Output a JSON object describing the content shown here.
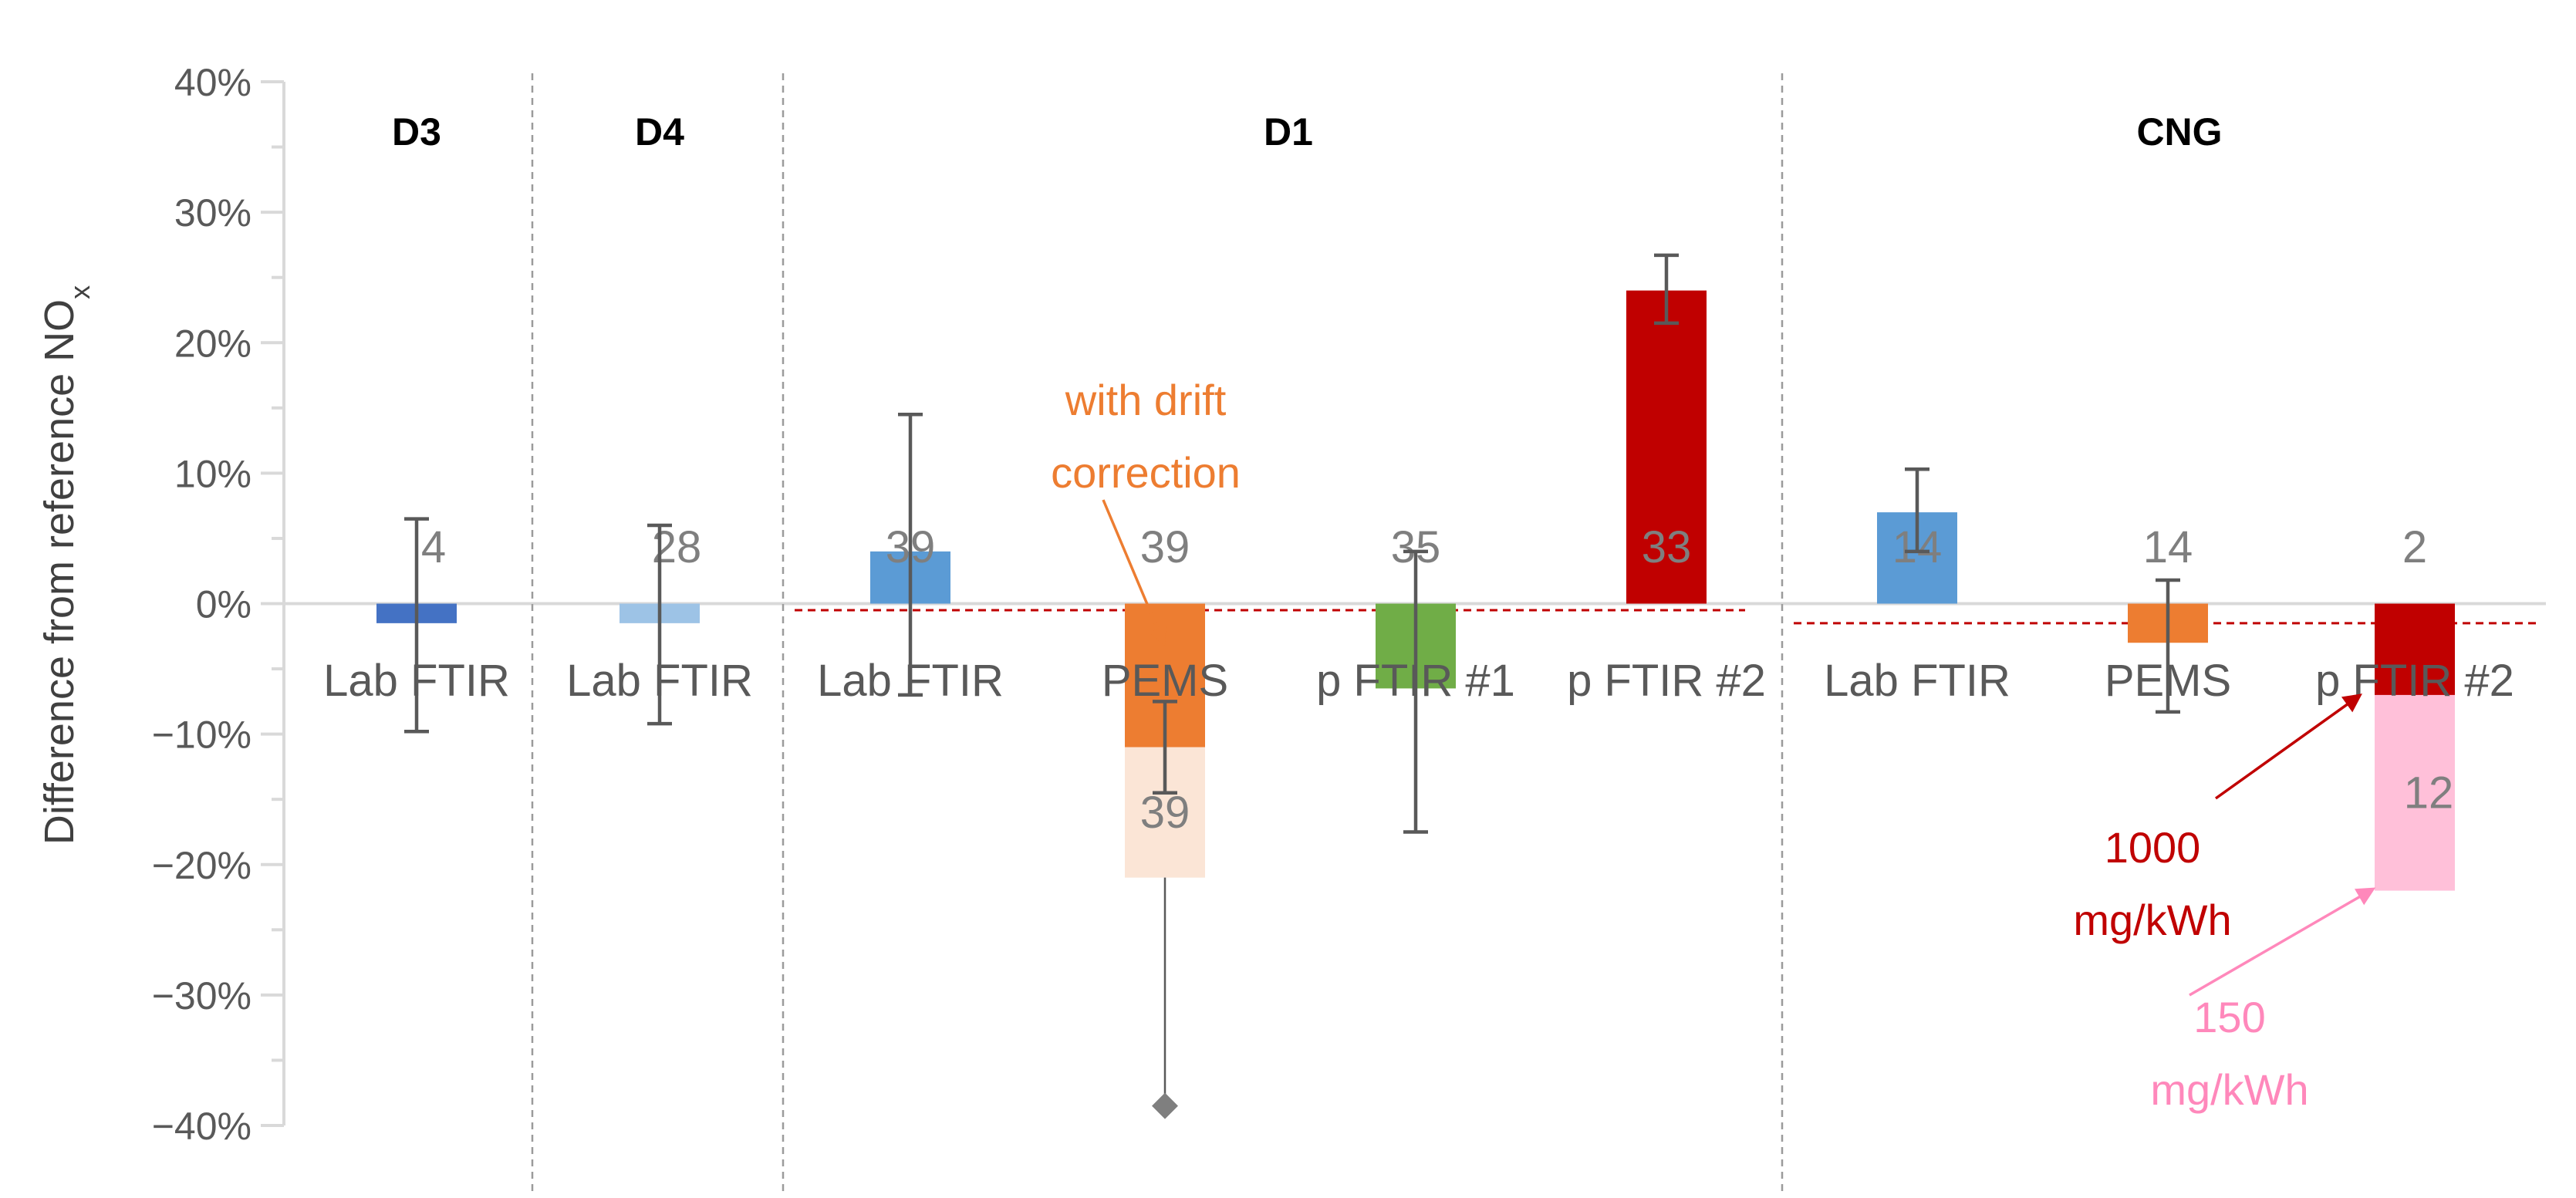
{
  "chart_data": {
    "type": "bar",
    "ylabel": "Difference from reference NO",
    "ylabel_subscript": "x",
    "ylim": [
      -40,
      40
    ],
    "y_ticks": [
      {
        "value": 40,
        "label": "40%"
      },
      {
        "value": 30,
        "label": "30%"
      },
      {
        "value": 20,
        "label": "20%"
      },
      {
        "value": 10,
        "label": "10%"
      },
      {
        "value": 0,
        "label": "0%"
      },
      {
        "value": -10,
        "label": "−10%"
      },
      {
        "value": -20,
        "label": "−20%"
      },
      {
        "value": -30,
        "label": "−30%"
      },
      {
        "value": -40,
        "label": "−40%"
      }
    ],
    "groups": [
      {
        "name": "D3",
        "ref_line": null,
        "bars": [
          {
            "category": "Lab FTIR",
            "value": -1.5,
            "err_low": -9.8,
            "err_high": 6.5,
            "label": "4",
            "color": "#4472C4"
          }
        ]
      },
      {
        "name": "D4",
        "ref_line": null,
        "bars": [
          {
            "category": "Lab FTIR",
            "value": -1.5,
            "err_low": -9.2,
            "err_high": 6.0,
            "label": "28",
            "color": "#9DC3E6"
          }
        ]
      },
      {
        "name": "D1",
        "ref_line": -0.5,
        "bars": [
          {
            "category": "Lab FTIR",
            "value": 4.0,
            "err_low": -7.0,
            "err_high": 14.5,
            "label": "39",
            "color": "#5B9BD5"
          },
          {
            "category": "PEMS",
            "value": -11.0,
            "err_low": -14.5,
            "err_high": -7.5,
            "label": "39",
            "color": "#ED7D31",
            "extra_value": -21.0,
            "extra_label": "39",
            "extra_color": "#FBE5D6",
            "outlier": -38.5
          },
          {
            "category": "p FTIR #1",
            "value": -6.5,
            "err_low": -17.5,
            "err_high": 4.0,
            "label": "35",
            "color": "#70AD47"
          },
          {
            "category": "p FTIR #2",
            "value": 24.0,
            "err_low": 21.5,
            "err_high": 26.7,
            "label": "33",
            "color": "#C00000"
          }
        ]
      },
      {
        "name": "CNG",
        "ref_line": -1.5,
        "bars": [
          {
            "category": "Lab FTIR",
            "value": 7.0,
            "err_low": 4.0,
            "err_high": 10.3,
            "label": "14",
            "color": "#5B9BD5"
          },
          {
            "category": "PEMS",
            "value": -3.0,
            "err_low": -8.3,
            "err_high": 1.8,
            "label": "14",
            "color": "#ED7D31"
          },
          {
            "category": "p FTIR #2",
            "value": -7.0,
            "err_low": null,
            "err_high": null,
            "label": "2",
            "color": "#C00000",
            "extra_value": -22.0,
            "extra_label": "12",
            "extra_color": "#FFC0D9"
          }
        ]
      }
    ],
    "annotations": [
      {
        "id": "drift",
        "lines": [
          "with drift",
          "correction"
        ],
        "color": "#ED7D31"
      },
      {
        "id": "high",
        "lines": [
          "1000",
          "mg/kWh"
        ],
        "color": "#C00000"
      },
      {
        "id": "low",
        "lines": [
          "150",
          "mg/kWh"
        ],
        "color": "#FF88BB"
      }
    ]
  }
}
